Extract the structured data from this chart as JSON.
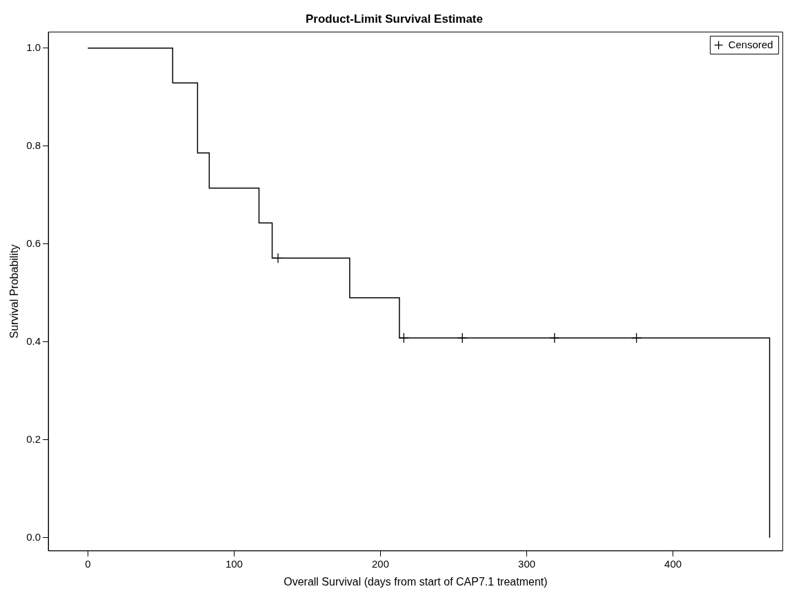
{
  "chart_data": {
    "type": "step",
    "title": "Product-Limit Survival Estimate",
    "xlabel": "Overall Survival (days from start of CAP7.1 treatment)",
    "ylabel": "Survival Probability",
    "xlim": [
      -27,
      475
    ],
    "xticks": [
      0,
      100,
      200,
      300,
      400
    ],
    "ylim": [
      -0.027,
      1.033
    ],
    "yticks": [
      {
        "value": 0,
        "label": "0.0"
      },
      {
        "value": 0.2,
        "label": "0.2"
      },
      {
        "value": 0.4,
        "label": "0.4"
      },
      {
        "value": 0.6,
        "label": "0.6"
      },
      {
        "value": 0.8,
        "label": "0.8"
      },
      {
        "value": 1,
        "label": "1.0"
      }
    ],
    "grid": false,
    "legend": "top right",
    "line_style": "solid",
    "series": [
      {
        "color": "#000000",
        "x": [
          0,
          58,
          75,
          83,
          117,
          126,
          179,
          213,
          466
        ],
        "values": [
          1,
          0.929,
          0.786,
          0.714,
          0.643,
          0.571,
          0.49,
          0.408,
          0
        ]
      },
      {
        "type": "scatter",
        "name": "Censored",
        "color": "#000000",
        "marker": "cross",
        "x": [
          130,
          216,
          256,
          319,
          375
        ],
        "values": [
          0.571,
          0.408,
          0.408,
          0.408,
          0.408
        ]
      }
    ]
  }
}
